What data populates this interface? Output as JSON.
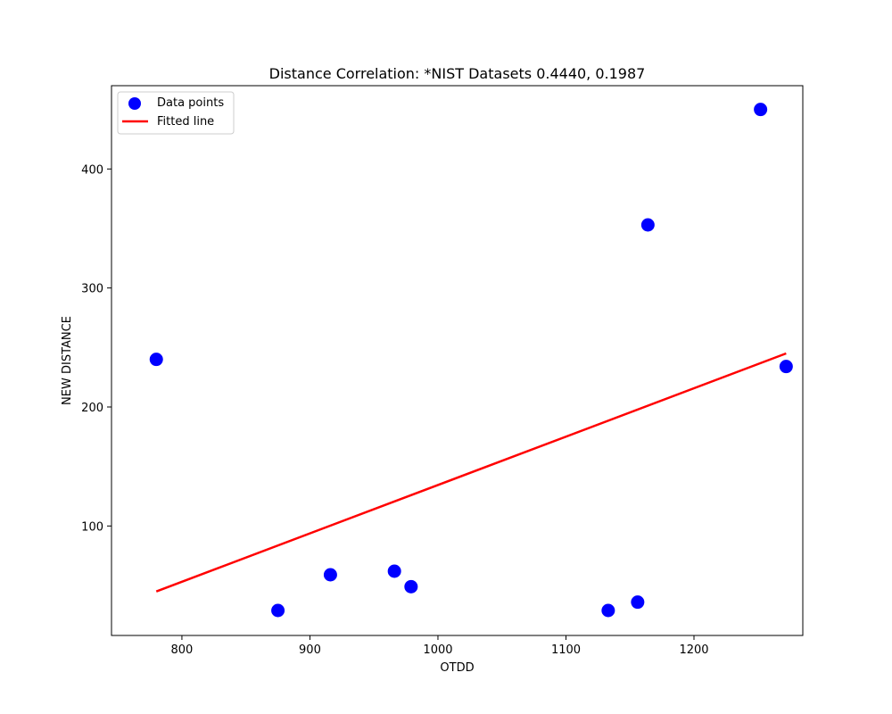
{
  "chart_data": {
    "type": "scatter",
    "title": "Distance Correlation: *NIST Datasets 0.4440, 0.1987",
    "xlabel": "OTDD",
    "ylabel": "NEW DISTANCE",
    "xlim": [
      745,
      1285
    ],
    "ylim": [
      8,
      470
    ],
    "x_ticks": [
      800,
      900,
      1000,
      1100,
      1200
    ],
    "y_ticks": [
      100,
      200,
      300,
      400
    ],
    "grid": false,
    "legend_position": "upper-left",
    "series": [
      {
        "name": "Data points",
        "kind": "scatter",
        "color": "#0000ff",
        "points": [
          {
            "x": 780,
            "y": 240
          },
          {
            "x": 875,
            "y": 29
          },
          {
            "x": 916,
            "y": 59
          },
          {
            "x": 966,
            "y": 62
          },
          {
            "x": 979,
            "y": 49
          },
          {
            "x": 1133,
            "y": 29
          },
          {
            "x": 1156,
            "y": 36
          },
          {
            "x": 1164,
            "y": 353
          },
          {
            "x": 1252,
            "y": 450
          },
          {
            "x": 1272,
            "y": 234
          }
        ]
      },
      {
        "name": "Fitted line",
        "kind": "line",
        "color": "#ff0000",
        "points": [
          {
            "x": 780,
            "y": 45
          },
          {
            "x": 1272,
            "y": 245
          }
        ]
      }
    ]
  }
}
